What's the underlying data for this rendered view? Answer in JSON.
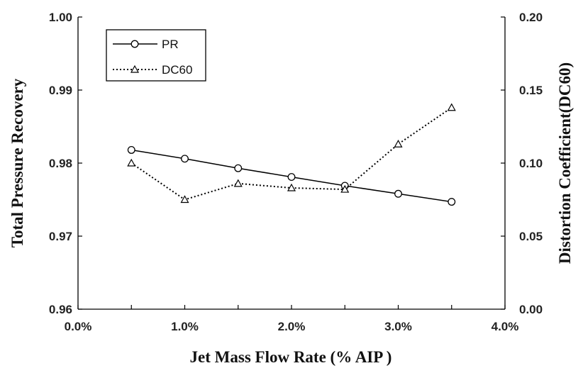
{
  "chart_data": {
    "type": "line",
    "xlabel": "Jet Mass Flow Rate (% AIP )",
    "ylabel": "Total Pressure Recovery",
    "y2label": "Distortion Coefficient(DC60)",
    "xlim": [
      0.0,
      0.04
    ],
    "ylim": [
      0.96,
      1.0
    ],
    "y2lim": [
      0.0,
      0.2
    ],
    "x_ticks": [
      "0.0%",
      "1.0%",
      "2.0%",
      "3.0%",
      "4.0%"
    ],
    "y_ticks": [
      "0.96",
      "0.97",
      "0.98",
      "0.99",
      "1.00"
    ],
    "y2_ticks": [
      "0.00",
      "0.05",
      "0.10",
      "0.15",
      "0.20"
    ],
    "grid": false,
    "legend_position": "top-left",
    "series": [
      {
        "name": "PR",
        "axis": "left",
        "marker": "circle",
        "line_style": "solid",
        "color": "#000000",
        "x": [
          0.005,
          0.01,
          0.015,
          0.02,
          0.025,
          0.03,
          0.035
        ],
        "values": [
          0.9818,
          0.9806,
          0.9793,
          0.9781,
          0.9769,
          0.9758,
          0.9747
        ]
      },
      {
        "name": "DC60",
        "axis": "right",
        "marker": "triangle",
        "line_style": "dotted",
        "color": "#000000",
        "x": [
          0.005,
          0.01,
          0.015,
          0.02,
          0.025,
          0.03,
          0.035
        ],
        "values": [
          0.1,
          0.075,
          0.086,
          0.083,
          0.082,
          0.113,
          0.138
        ]
      }
    ]
  }
}
